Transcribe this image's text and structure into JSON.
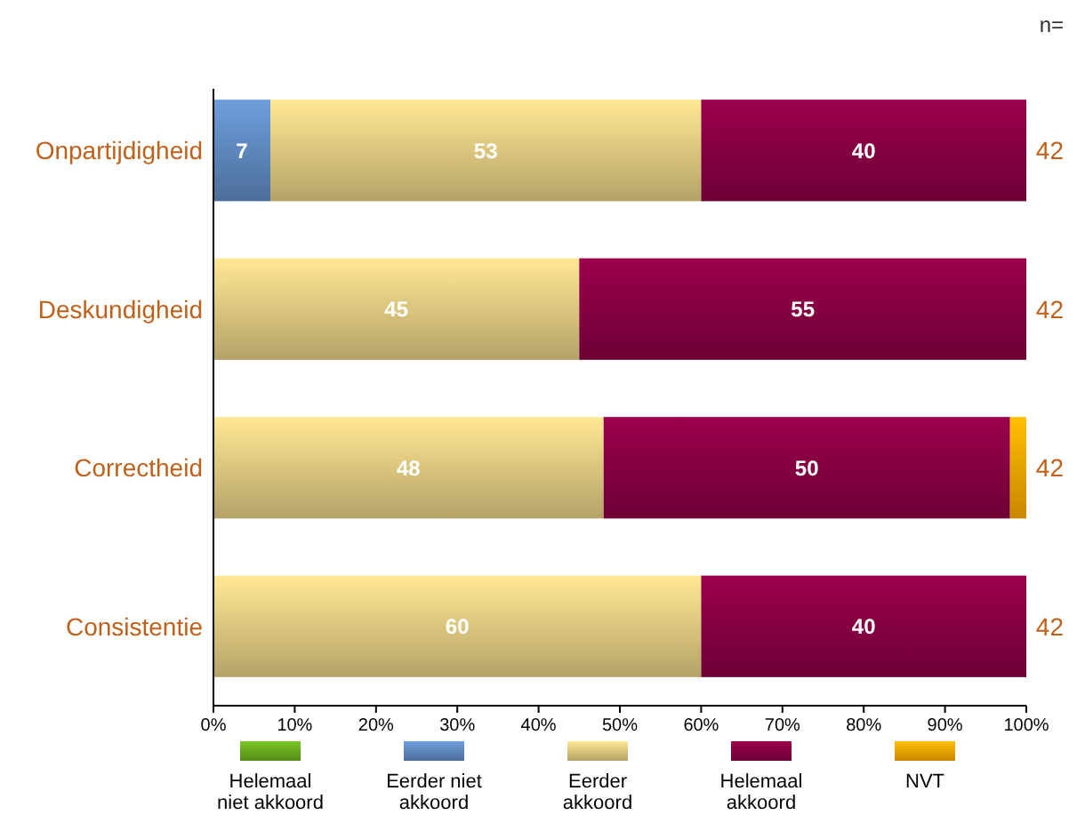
{
  "chart_data": {
    "type": "bar",
    "orientation": "horizontal",
    "stacked": true,
    "categories": [
      "Onpartijdigheid",
      "Deskundigheid",
      "Correctheid",
      "Consistentie"
    ],
    "series": [
      {
        "name": "Helemaal niet akkoord",
        "color": "#66a61e",
        "values": [
          null,
          null,
          null,
          null
        ],
        "value_labels": [
          null,
          null,
          null,
          null
        ]
      },
      {
        "name": "Eerder niet akkoord",
        "color": "#5b84b8",
        "values": [
          7,
          null,
          null,
          null
        ],
        "value_labels": [
          "7",
          null,
          null,
          null
        ]
      },
      {
        "name": "Eerder akkoord",
        "color": "#d8c27c",
        "values": [
          53,
          45,
          48,
          60
        ],
        "value_labels": [
          "53",
          "45",
          "48",
          "60"
        ]
      },
      {
        "name": "Helemaal akkoord",
        "color": "#82003f",
        "values": [
          40,
          55,
          50,
          40
        ],
        "value_labels": [
          "40",
          "55",
          "50",
          "40"
        ]
      },
      {
        "name": "NVT",
        "color": "#f0a000",
        "values": [
          null,
          null,
          2,
          null
        ],
        "value_labels": [
          null,
          null,
          null,
          null
        ]
      }
    ],
    "xlim": [
      0,
      100
    ],
    "xticks": [
      {
        "value": 0,
        "label": "0%"
      },
      {
        "value": 10,
        "label": "10%"
      },
      {
        "value": 20,
        "label": "20%"
      },
      {
        "value": 30,
        "label": "30%"
      },
      {
        "value": 40,
        "label": "40%"
      },
      {
        "value": 50,
        "label": "50%"
      },
      {
        "value": 60,
        "label": "60%"
      },
      {
        "value": 70,
        "label": "70%"
      },
      {
        "value": 80,
        "label": "80%"
      },
      {
        "value": 90,
        "label": "90%"
      },
      {
        "value": 100,
        "label": "100%"
      }
    ],
    "annotations": [
      "n=",
      "42",
      "42",
      "42",
      "42"
    ],
    "legend": "bottom",
    "grid": false
  }
}
